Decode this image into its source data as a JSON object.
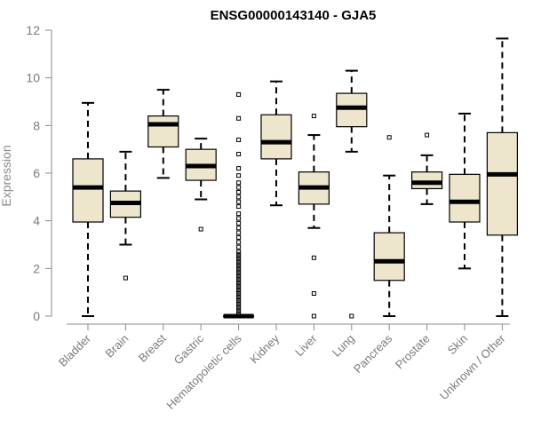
{
  "chart_data": {
    "type": "boxplot",
    "title": "ENSG00000143140 - GJA5",
    "xlabel": "",
    "ylabel": "Expression",
    "ylim": [
      0,
      12
    ],
    "yticks": [
      "0",
      "2",
      "4",
      "6",
      "8",
      "10",
      "12"
    ],
    "box_color": "#ede5cc",
    "categories": [
      "Bladder",
      "Brain",
      "Breast",
      "Gastric",
      "Hematopoietic cells",
      "Kidney",
      "Liver",
      "Lung",
      "Pancreas",
      "Prostate",
      "Skin",
      "Unknown / Other"
    ],
    "boxes": [
      {
        "name": "Bladder",
        "min": 0.0,
        "q1": 3.95,
        "median": 5.4,
        "q3": 6.6,
        "max": 8.95,
        "outliers": []
      },
      {
        "name": "Brain",
        "min": 3.0,
        "q1": 4.15,
        "median": 4.75,
        "q3": 5.25,
        "max": 6.9,
        "outliers": [
          1.6
        ]
      },
      {
        "name": "Breast",
        "min": 5.8,
        "q1": 7.1,
        "median": 8.05,
        "q3": 8.4,
        "max": 9.5,
        "outliers": []
      },
      {
        "name": "Gastric",
        "min": 4.9,
        "q1": 5.7,
        "median": 6.3,
        "q3": 7.0,
        "max": 7.45,
        "outliers": [
          3.65
        ]
      },
      {
        "name": "Hematopoietic cells",
        "min": 0.0,
        "q1": 0.0,
        "median": 0.0,
        "q3": 0.0,
        "max": 0.0,
        "outliers": [
          9.3,
          8.3,
          7.4,
          6.8,
          6.2,
          5.9,
          5.6,
          5.4,
          5.2,
          5.0,
          4.8,
          4.6,
          4.3,
          4.1,
          3.9,
          3.7,
          3.5,
          3.3,
          3.1,
          2.9,
          2.7,
          2.6,
          2.5,
          2.4,
          2.3,
          2.2,
          2.1,
          2.0,
          1.9,
          1.8,
          1.7,
          1.6,
          1.5,
          1.4,
          1.3,
          1.2,
          1.1,
          1.0,
          0.9,
          0.8,
          0.7,
          0.6,
          0.5,
          0.4,
          0.3,
          0.2,
          0.1
        ]
      },
      {
        "name": "Kidney",
        "min": 4.65,
        "q1": 6.6,
        "median": 7.3,
        "q3": 8.45,
        "max": 9.85,
        "outliers": []
      },
      {
        "name": "Liver",
        "min": 3.7,
        "q1": 4.7,
        "median": 5.4,
        "q3": 6.05,
        "max": 7.6,
        "outliers": [
          8.4,
          2.45,
          0.95,
          0.0
        ]
      },
      {
        "name": "Lung",
        "min": 6.9,
        "q1": 7.95,
        "median": 8.75,
        "q3": 9.35,
        "max": 10.3,
        "outliers": [
          0.0
        ]
      },
      {
        "name": "Pancreas",
        "min": 0.0,
        "q1": 1.5,
        "median": 2.3,
        "q3": 3.5,
        "max": 5.9,
        "outliers": [
          7.5
        ]
      },
      {
        "name": "Prostate",
        "min": 4.7,
        "q1": 5.35,
        "median": 5.6,
        "q3": 6.05,
        "max": 6.75,
        "outliers": [
          7.6
        ]
      },
      {
        "name": "Skin",
        "min": 2.0,
        "q1": 3.95,
        "median": 4.8,
        "q3": 5.95,
        "max": 8.5,
        "outliers": []
      },
      {
        "name": "Unknown / Other",
        "min": 0.0,
        "q1": 3.4,
        "median": 5.95,
        "q3": 7.7,
        "max": 11.65,
        "outliers": []
      }
    ]
  }
}
